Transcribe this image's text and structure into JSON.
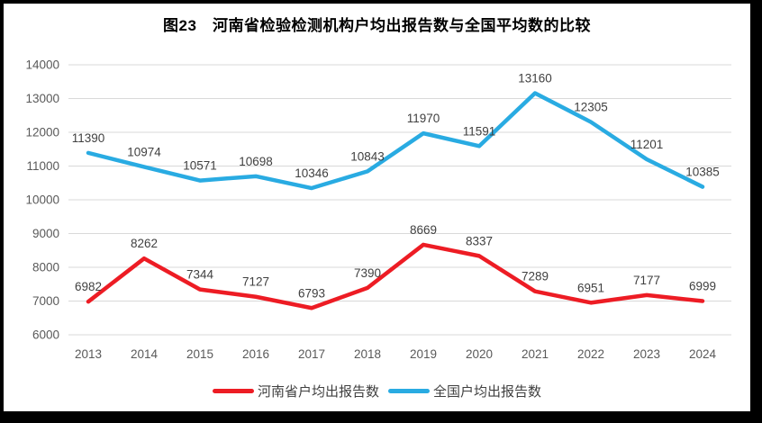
{
  "chart_data": {
    "type": "line",
    "title": "图23　河南省检验检测机构户均出报告数与全国平均数的比较",
    "categories": [
      "2013",
      "2014",
      "2015",
      "2016",
      "2017",
      "2018",
      "2019",
      "2020",
      "2021",
      "2022",
      "2023",
      "2024"
    ],
    "series": [
      {
        "name": "河南省户均出报告数",
        "color": "#ED1C24",
        "values": [
          6982,
          8262,
          7344,
          7127,
          6793,
          7390,
          8669,
          8337,
          7289,
          6951,
          7177,
          6999
        ]
      },
      {
        "name": "全国户均出报告数",
        "color": "#29ABE2",
        "values": [
          11390,
          10974,
          10571,
          10698,
          10346,
          10843,
          11970,
          11591,
          13160,
          12305,
          11201,
          10385
        ]
      }
    ],
    "xlabel": "",
    "ylabel": "",
    "ylim": [
      6000,
      14000
    ],
    "ytick_step": 1000,
    "grid": true,
    "legend_position": "bottom",
    "styles": {
      "grid_color": "#D9D9D9",
      "axis_text_color": "#595959",
      "data_label_color": "#404040",
      "frame_border_color": "#000000"
    }
  }
}
